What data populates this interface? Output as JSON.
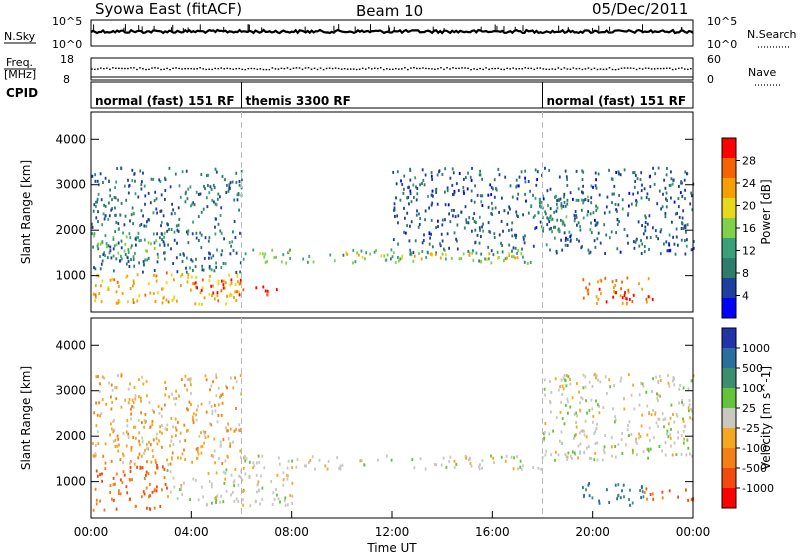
{
  "header": {
    "title": "Syowa East (fitACF)",
    "beam": "Beam 10",
    "date": "05/Dec/2011"
  },
  "top_panels": {
    "nsky_label": "N.Sky",
    "nsearch_label": "N.Search",
    "nsky_ticks_left": [
      "10^5",
      "10^0"
    ],
    "nsky_ticks_right": [
      "10^5",
      "10^0"
    ],
    "freq_label_line1": "Freq.",
    "freq_label_line2": "[MHz]",
    "freq_ticks": [
      "18",
      "8"
    ],
    "nave_label": "Nave",
    "nave_ticks": [
      "60",
      "0"
    ],
    "cpid_label": "CPID"
  },
  "modes": [
    {
      "label": "normal (fast) 151 RF",
      "start_hour": 0,
      "end_hour": 6
    },
    {
      "label": "themis 3300 RF",
      "start_hour": 6,
      "end_hour": 18
    },
    {
      "label": "normal (fast) 151 RF",
      "start_hour": 18,
      "end_hour": 24
    }
  ],
  "colors": {
    "power": [
      "#0000ff",
      "#1f3fa0",
      "#2e7d6b",
      "#3aa07a",
      "#7fd04a",
      "#e8d81c",
      "#f5a000",
      "#f56400",
      "#ff0000"
    ],
    "velocity": [
      "#2233aa",
      "#2a6e9e",
      "#3b8f6e",
      "#63c43a",
      "#c8c8c0",
      "#f5a623",
      "#f57f17",
      "#f24a0a",
      "#ff0000"
    ],
    "gray_fill": "#c8c8c0"
  },
  "chart_data": [
    {
      "type": "heatmap",
      "name": "power",
      "xlabel": "",
      "ylabel": "Slant Range [km]",
      "x_range_hours": [
        0,
        24
      ],
      "ylim": [
        200,
        4600
      ],
      "y_ticks": [
        "1000",
        "2000",
        "3000",
        "4000"
      ],
      "colorbar": {
        "label": "Power [dB]",
        "range": [
          0,
          32
        ],
        "ticks": [
          "4",
          "8",
          "12",
          "16",
          "20",
          "24",
          "28"
        ]
      },
      "regions": [
        {
          "t0": 0.0,
          "t1": 6.0,
          "r0": 400,
          "r1": 1100,
          "v": 22
        },
        {
          "t0": 4.0,
          "t1": 6.0,
          "r0": 550,
          "r1": 950,
          "v": 28
        },
        {
          "t0": 6.0,
          "t1": 7.5,
          "r0": 600,
          "r1": 800,
          "v": 30
        },
        {
          "t0": 0.0,
          "t1": 3.0,
          "r0": 1400,
          "r1": 2000,
          "v": 14
        },
        {
          "t0": 0.0,
          "t1": 6.0,
          "r0": 1100,
          "r1": 3400,
          "v": 8
        },
        {
          "t0": 6.0,
          "t1": 17.5,
          "r0": 1300,
          "r1": 1600,
          "v": 14
        },
        {
          "t0": 10.0,
          "t1": 17.0,
          "r0": 1380,
          "r1": 1520,
          "v": 20
        },
        {
          "t0": 12.0,
          "t1": 24.0,
          "r0": 1500,
          "r1": 3400,
          "v": 7
        },
        {
          "t0": 17.5,
          "t1": 20.0,
          "r0": 2000,
          "r1": 2800,
          "v": 11
        },
        {
          "t0": 19.5,
          "t1": 22.5,
          "r0": 400,
          "r1": 1000,
          "v": 26
        },
        {
          "t0": 20.5,
          "t1": 21.5,
          "r0": 550,
          "r1": 800,
          "v": 30
        }
      ]
    },
    {
      "type": "heatmap",
      "name": "velocity",
      "xlabel": "Time UT",
      "ylabel": "Slant Range [km]",
      "x_range_hours": [
        0,
        24
      ],
      "x_ticks": [
        "00:00",
        "04:00",
        "08:00",
        "12:00",
        "16:00",
        "20:00",
        "00:00"
      ],
      "ylim": [
        200,
        4600
      ],
      "y_ticks": [
        "1000",
        "2000",
        "3000",
        "4000"
      ],
      "colorbar": {
        "label": "Velocity [m s^-1]",
        "ticks": [
          "1000",
          "500",
          "100",
          "25",
          "-25",
          "-100",
          "-500",
          "-1000"
        ]
      },
      "regions": [
        {
          "t0": 0.0,
          "t1": 3.0,
          "r0": 400,
          "r1": 1400,
          "v": -300
        },
        {
          "t0": 3.0,
          "t1": 8.0,
          "r0": 500,
          "r1": 1300,
          "v": 0
        },
        {
          "t0": 6.0,
          "t1": 18.0,
          "r0": 1300,
          "r1": 1600,
          "v": 0
        },
        {
          "t0": 18.0,
          "t1": 24.0,
          "r0": 1500,
          "r1": 3400,
          "v": 0
        },
        {
          "t0": 19.5,
          "t1": 22.0,
          "r0": 500,
          "r1": 1000,
          "v": 300
        },
        {
          "t0": 22.0,
          "t1": 24.0,
          "r0": 600,
          "r1": 900,
          "v": -300
        },
        {
          "t0": 0.0,
          "t1": 6.0,
          "r0": 1400,
          "r1": 3400,
          "v": -100
        }
      ]
    }
  ]
}
